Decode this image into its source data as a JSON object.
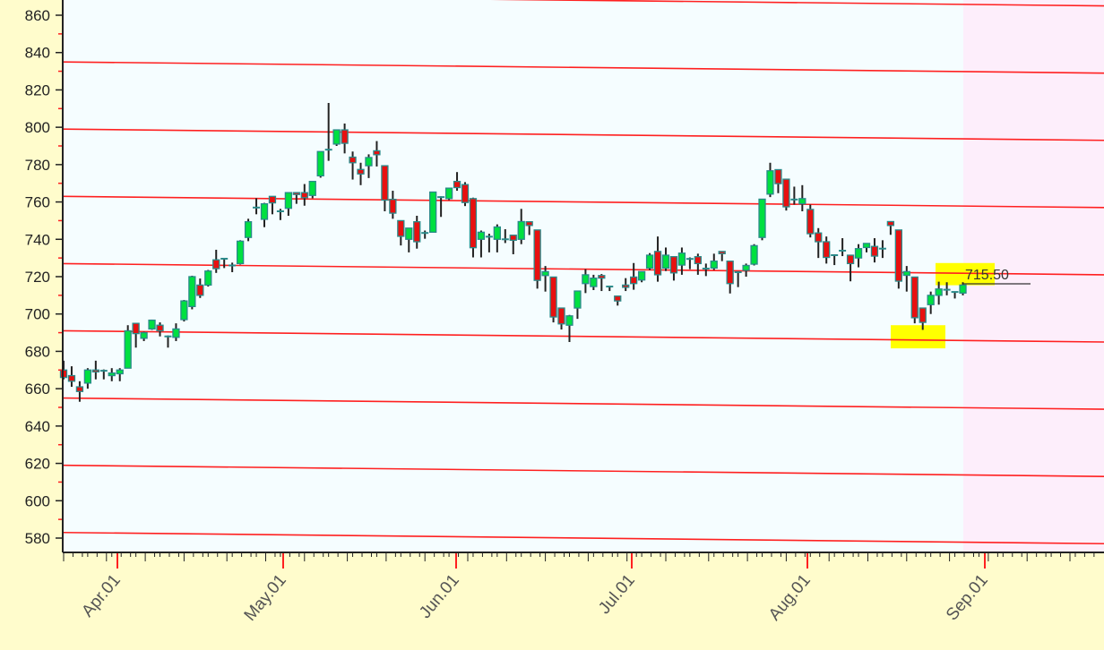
{
  "chart_data": {
    "type": "candlestick",
    "title": "",
    "xlabel": "",
    "ylabel": "",
    "ylim": [
      575,
      870
    ],
    "y_ticks": [
      "580",
      "600",
      "620",
      "640",
      "660",
      "680",
      "700",
      "720",
      "740",
      "760",
      "780",
      "800",
      "820",
      "840",
      "860"
    ],
    "x_tick_labels": [
      "Apr.01",
      "May.01",
      "Jun.01",
      "Jul.01",
      "Aug.01",
      "Sep.01"
    ],
    "ohlc_columns": [
      "open",
      "high",
      "low",
      "close"
    ],
    "ohlc": [
      [
        670,
        675,
        665,
        666
      ],
      [
        667,
        672,
        661,
        664
      ],
      [
        661,
        664,
        653,
        658.5
      ],
      [
        663,
        671,
        660,
        670
      ],
      [
        670,
        675,
        665,
        669
      ],
      [
        669.6,
        670.3,
        665,
        669.6
      ],
      [
        667,
        671,
        664,
        668.4
      ],
      [
        668,
        671,
        664,
        670
      ],
      [
        671,
        694,
        671,
        691
      ],
      [
        695,
        695,
        682,
        689.5
      ],
      [
        687,
        690.5,
        685.5,
        690
      ],
      [
        692,
        697,
        691.5,
        696.7
      ],
      [
        694,
        695.5,
        688,
        691
      ],
      [
        688,
        688.5,
        682,
        688
      ],
      [
        687.5,
        695,
        685.5,
        692
      ],
      [
        697,
        707.5,
        696,
        707
      ],
      [
        704,
        720.5,
        702.5,
        720
      ],
      [
        715.5,
        719,
        708.6,
        710
      ],
      [
        715.5,
        723.6,
        714.7,
        723
      ],
      [
        729,
        734.4,
        722,
        724.3
      ],
      [
        729.6,
        730,
        724.6,
        729.6
      ],
      [
        726,
        727.5,
        722.4,
        726
      ],
      [
        727,
        739.5,
        726.5,
        739
      ],
      [
        741,
        751,
        739,
        749.4
      ],
      [
        757,
        762,
        753.4,
        757
      ],
      [
        750.7,
        759.5,
        746.5,
        759
      ],
      [
        763,
        763,
        753.4,
        759.5
      ],
      [
        755,
        756.3,
        750.3,
        755
      ],
      [
        756.6,
        765,
        752.6,
        765
      ],
      [
        765,
        765,
        759,
        764
      ],
      [
        765,
        769.6,
        758,
        762.3
      ],
      [
        763.5,
        771,
        762,
        771
      ],
      [
        774,
        787,
        773,
        787
      ],
      [
        788,
        813,
        782,
        788
      ],
      [
        791,
        798.6,
        790,
        798.6
      ],
      [
        798.6,
        802,
        786,
        791.4
      ],
      [
        784,
        787,
        772,
        781
      ],
      [
        777.4,
        781,
        769,
        775
      ],
      [
        779.4,
        785.5,
        772.8,
        783.8
      ],
      [
        787.4,
        792.6,
        779,
        785.3
      ],
      [
        779.4,
        779.4,
        755,
        761
      ],
      [
        761.4,
        766,
        751,
        754
      ],
      [
        750,
        750,
        736.7,
        741.6
      ],
      [
        740,
        746,
        733,
        746
      ],
      [
        749.4,
        752.6,
        735,
        738.7
      ],
      [
        743.4,
        744.7,
        740.3,
        743.4
      ],
      [
        743.8,
        765.3,
        743.5,
        765.3
      ],
      [
        762.6,
        763,
        752,
        762.6
      ],
      [
        761.8,
        767.4,
        761,
        767.4
      ],
      [
        771,
        776,
        766,
        767.7
      ],
      [
        769.3,
        770.6,
        757.8,
        759.7
      ],
      [
        761.8,
        762.3,
        730.3,
        735.5
      ],
      [
        740,
        744.7,
        730.3,
        743.8
      ],
      [
        741.4,
        743,
        733,
        741.4
      ],
      [
        740,
        748,
        733,
        746.6
      ],
      [
        740,
        745.4,
        738,
        740
      ],
      [
        742.2,
        742.2,
        732,
        739.5
      ],
      [
        740,
        756.3,
        737.4,
        749.5
      ],
      [
        749.4,
        749.4,
        742.3,
        747.4
      ],
      [
        745,
        745,
        713.6,
        718
      ],
      [
        720.6,
        725.7,
        712,
        722.7
      ],
      [
        719.8,
        719.8,
        695.5,
        698.4
      ],
      [
        703.2,
        703.2,
        691.7,
        694.7
      ],
      [
        694,
        699.5,
        685,
        699
      ],
      [
        703.2,
        712.3,
        697.4,
        712.3
      ],
      [
        716.3,
        724,
        711.2,
        721
      ],
      [
        714.7,
        721,
        712.8,
        719.2
      ],
      [
        720.6,
        721.4,
        712.3,
        719.2
      ],
      [
        714.7,
        714.7,
        712.3,
        714.7
      ],
      [
        709.6,
        709.6,
        704.5,
        707
      ],
      [
        715.5,
        719.2,
        712.3,
        714.3
      ],
      [
        719.8,
        727.3,
        713,
        716.3
      ],
      [
        718.2,
        722.7,
        717,
        722.7
      ],
      [
        724.6,
        732.6,
        723.6,
        731.5
      ],
      [
        733.5,
        741.5,
        717.3,
        721
      ],
      [
        724.6,
        735.6,
        723,
        731.5
      ],
      [
        730.7,
        730.7,
        717.9,
        722
      ],
      [
        726.2,
        735.6,
        721,
        732.6
      ],
      [
        729.5,
        730.3,
        724,
        729.5
      ],
      [
        730.7,
        732.3,
        721,
        727
      ],
      [
        724.3,
        727,
        720.3,
        724.3
      ],
      [
        724.6,
        732.3,
        723.6,
        728.3
      ],
      [
        733.5,
        733.5,
        728.3,
        732.3
      ],
      [
        728.3,
        728.3,
        711,
        716.3
      ],
      [
        722.4,
        722.6,
        714.4,
        722.4
      ],
      [
        723.4,
        727,
        720,
        726
      ],
      [
        726.7,
        737.4,
        726,
        736.6
      ],
      [
        741,
        761.5,
        739.5,
        761.5
      ],
      [
        764.2,
        781,
        762.6,
        776.7
      ],
      [
        777.3,
        777.3,
        764.7,
        769.8
      ],
      [
        772.2,
        772.2,
        755.4,
        757.4
      ],
      [
        761.3,
        768.2,
        758.6,
        761.3
      ],
      [
        759,
        769,
        755,
        761.8
      ],
      [
        756,
        758.6,
        741,
        743
      ],
      [
        743.4,
        746,
        730,
        738.7
      ],
      [
        738.7,
        741.5,
        727,
        730.3
      ],
      [
        731.5,
        731.5,
        726.2,
        731.5
      ],
      [
        733.9,
        740.6,
        731,
        733.9
      ],
      [
        731.5,
        731.5,
        717.5,
        727
      ],
      [
        730,
        737.4,
        725,
        735
      ],
      [
        735.6,
        737.8,
        733,
        737.8
      ],
      [
        736.2,
        740.6,
        727.6,
        731
      ],
      [
        735,
        739.5,
        730,
        735
      ],
      [
        749.5,
        749.5,
        742.4,
        747.4
      ],
      [
        745,
        745,
        713.6,
        717.6
      ],
      [
        720.7,
        725.7,
        712,
        722.7
      ],
      [
        719.8,
        719.8,
        695,
        698
      ],
      [
        703.2,
        703.2,
        691.5,
        695.5
      ],
      [
        705,
        712,
        700,
        710
      ],
      [
        710,
        717.3,
        705,
        713.4
      ],
      [
        713,
        717,
        710,
        713
      ],
      [
        711.8,
        711.8,
        708.3,
        711.8
      ],
      [
        711.2,
        717,
        710,
        715.5
      ]
    ],
    "channel_lines": [
      {
        "start": 871,
        "end": 865
      },
      {
        "start": 835,
        "end": 829
      },
      {
        "start": 799,
        "end": 793
      },
      {
        "start": 763,
        "end": 757
      },
      {
        "start": 727,
        "end": 721
      },
      {
        "start": 691,
        "end": 685
      },
      {
        "start": 655,
        "end": 649
      },
      {
        "start": 619,
        "end": 613
      },
      {
        "start": 583,
        "end": 577
      }
    ],
    "last_price_label": "715.50",
    "last_price": 715.5,
    "highlight_zones": [
      {
        "low": 715.4,
        "high": 727.3
      },
      {
        "low": 681.6,
        "high": 694
      }
    ],
    "grid": false,
    "colors": {
      "up": "#00e040",
      "down": "#e81010",
      "candle_border": "#2a8a8a",
      "channel": "#ff2020",
      "highlight": "#ffff00",
      "plot_bg": "#f5fdff",
      "future_bg": "#fdeefb",
      "axis_bg": "#fffccc"
    }
  }
}
